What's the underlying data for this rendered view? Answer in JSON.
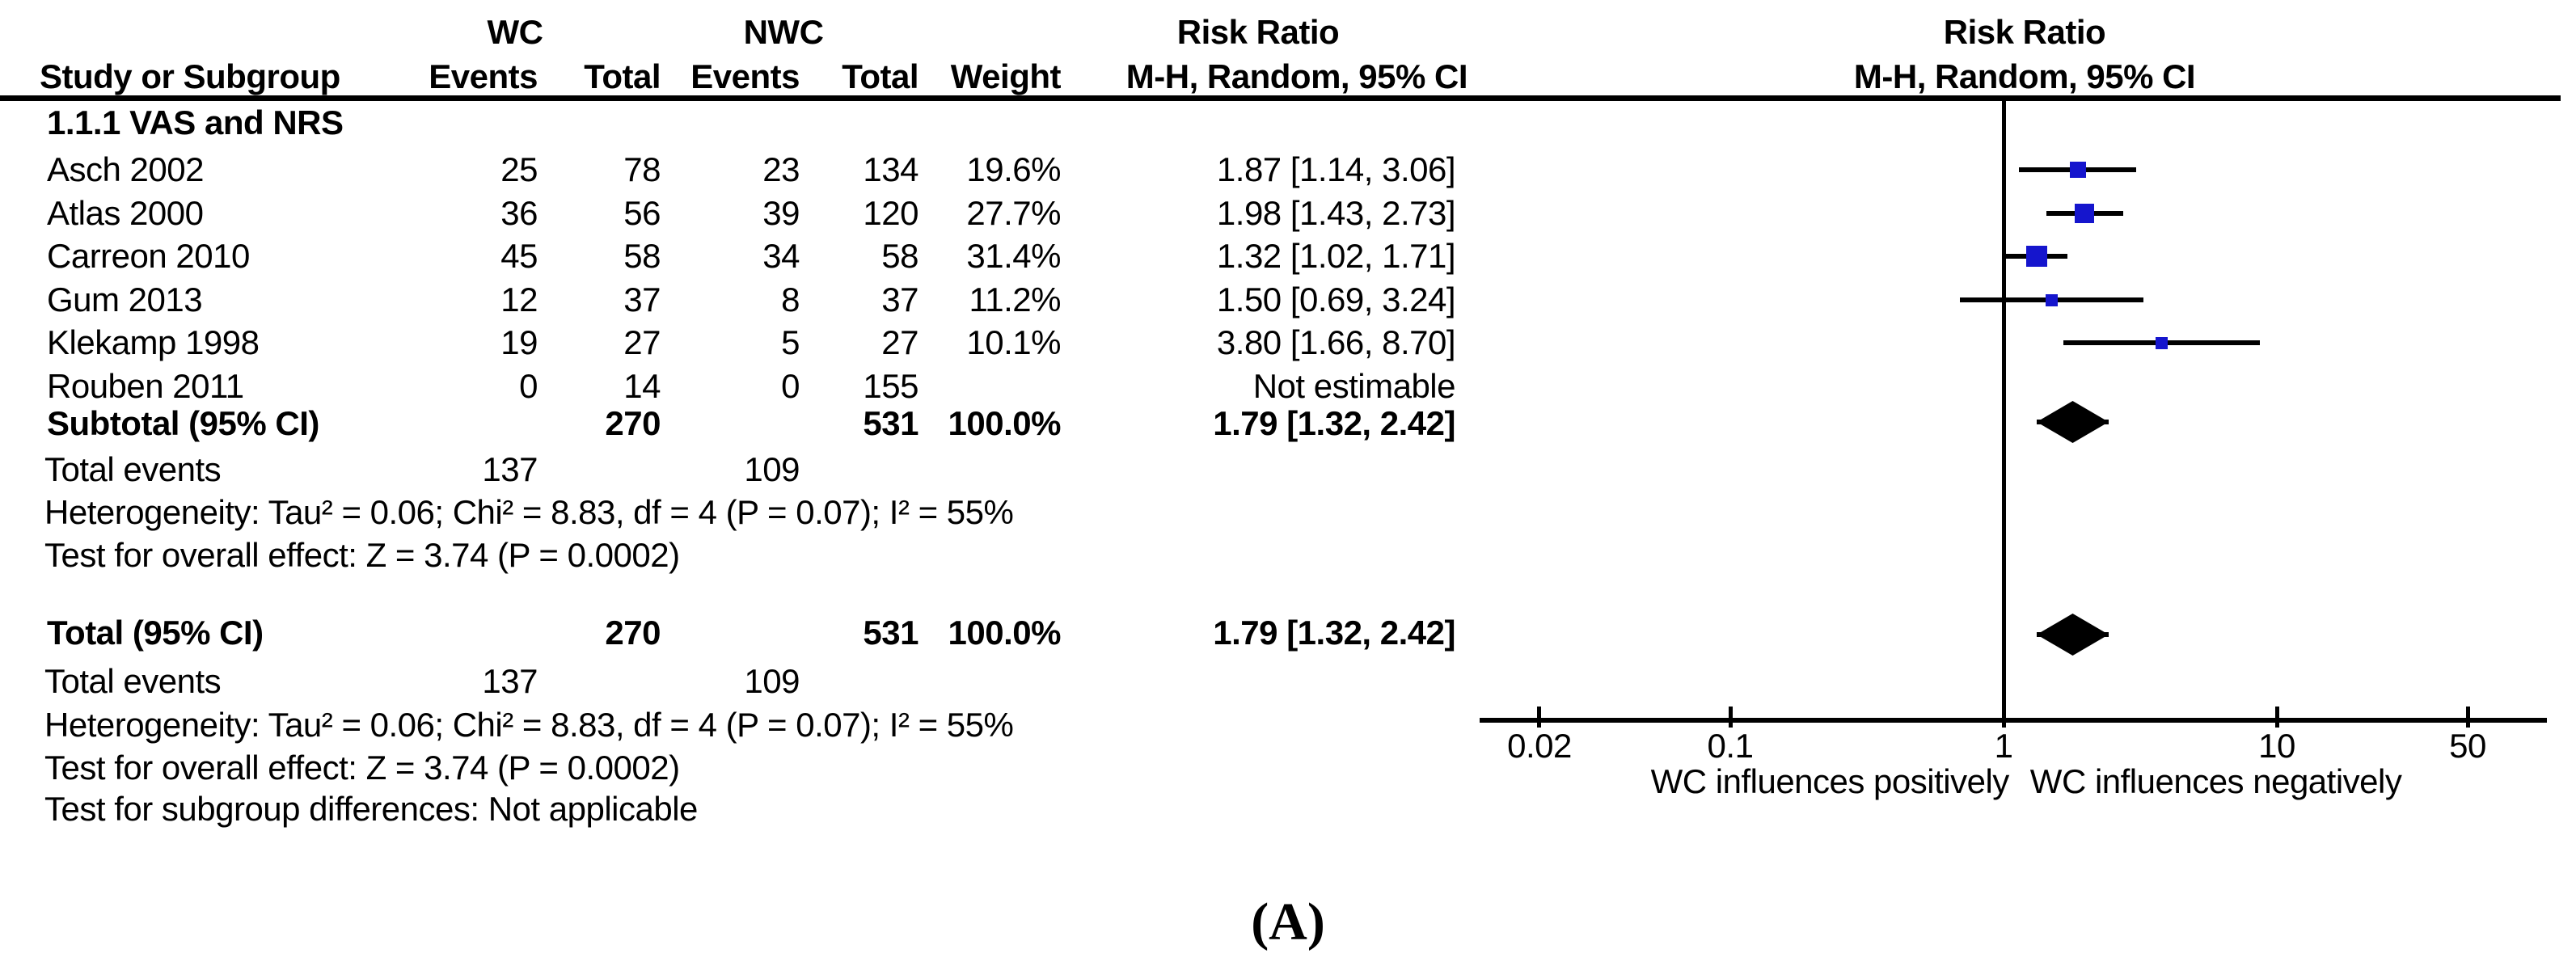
{
  "panel_label": "(A)",
  "chart_data": {
    "type": "forest",
    "effect_measure": "Risk Ratio",
    "model": "M-H, Random, 95% CI",
    "group_labels": {
      "wc": "WC",
      "nwc": "NWC"
    },
    "columns": {
      "study": "Study or Subgroup",
      "events1": "Events",
      "total1": "Total",
      "events2": "Events",
      "total2": "Total",
      "weight": "Weight",
      "effect": "M-H, Random, 95% CI"
    },
    "subgroup": "1.1.1 VAS and NRS",
    "studies": [
      {
        "study": "Asch 2002",
        "ev1": "25",
        "tot1": "78",
        "ev2": "23",
        "tot2": "134",
        "weight": "19.6%",
        "effect": "1.87 [1.14, 3.06]",
        "rr": 1.87,
        "lo": 1.14,
        "hi": 3.06,
        "w": 19.6
      },
      {
        "study": "Atlas 2000",
        "ev1": "36",
        "tot1": "56",
        "ev2": "39",
        "tot2": "120",
        "weight": "27.7%",
        "effect": "1.98 [1.43, 2.73]",
        "rr": 1.98,
        "lo": 1.43,
        "hi": 2.73,
        "w": 27.7
      },
      {
        "study": "Carreon 2010",
        "ev1": "45",
        "tot1": "58",
        "ev2": "34",
        "tot2": "58",
        "weight": "31.4%",
        "effect": "1.32 [1.02, 1.71]",
        "rr": 1.32,
        "lo": 1.02,
        "hi": 1.71,
        "w": 31.4
      },
      {
        "study": "Gum 2013",
        "ev1": "12",
        "tot1": "37",
        "ev2": "8",
        "tot2": "37",
        "weight": "11.2%",
        "effect": "1.50 [0.69, 3.24]",
        "rr": 1.5,
        "lo": 0.69,
        "hi": 3.24,
        "w": 11.2
      },
      {
        "study": "Klekamp 1998",
        "ev1": "19",
        "tot1": "27",
        "ev2": "5",
        "tot2": "27",
        "weight": "10.1%",
        "effect": "3.80 [1.66, 8.70]",
        "rr": 3.8,
        "lo": 1.66,
        "hi": 8.7,
        "w": 10.1
      },
      {
        "study": "Rouben 2011",
        "ev1": "0",
        "tot1": "14",
        "ev2": "0",
        "tot2": "155",
        "weight": "",
        "effect": "Not estimable"
      }
    ],
    "subtotal": {
      "study": "Subtotal (95% CI)",
      "ev1": "",
      "tot1": "270",
      "ev2": "",
      "tot2": "531",
      "weight": "100.0%",
      "effect": "1.79 [1.32, 2.42]",
      "rr": 1.79,
      "lo": 1.32,
      "hi": 2.42
    },
    "subtotal_notes": [
      {
        "label": "Total events",
        "ev1": "137",
        "ev2": "109"
      },
      {
        "label": "Heterogeneity: Tau² = 0.06; Chi² = 8.83, df = 4 (P = 0.07); I² = 55%"
      },
      {
        "label": "Test for overall effect: Z = 3.74 (P = 0.0002)"
      }
    ],
    "total": {
      "study": "Total (95% CI)",
      "ev1": "",
      "tot1": "270",
      "ev2": "",
      "tot2": "531",
      "weight": "100.0%",
      "effect": "1.79 [1.32, 2.42]",
      "rr": 1.79,
      "lo": 1.32,
      "hi": 2.42
    },
    "total_notes": [
      {
        "label": "Total events",
        "ev1": "137",
        "ev2": "109"
      },
      {
        "label": "Heterogeneity: Tau² = 0.06; Chi² = 8.83, df = 4 (P = 0.07); I² = 55%"
      },
      {
        "label": "Test for overall effect: Z = 3.74 (P = 0.0002)"
      },
      {
        "label": "Test for subgroup differences: Not applicable"
      }
    ],
    "axis": {
      "scale": "log",
      "ticks": [
        0.02,
        0.1,
        1,
        10,
        50
      ],
      "tick_labels": [
        "0.02",
        "0.1",
        "1",
        "10",
        "50"
      ],
      "xlim": [
        0.02,
        50
      ]
    },
    "xlabel_left": "WC influences positively",
    "xlabel_right": "WC influences negatively",
    "colors": {
      "marker": "#1515CD",
      "line": "#000000",
      "text": "#000000"
    }
  }
}
